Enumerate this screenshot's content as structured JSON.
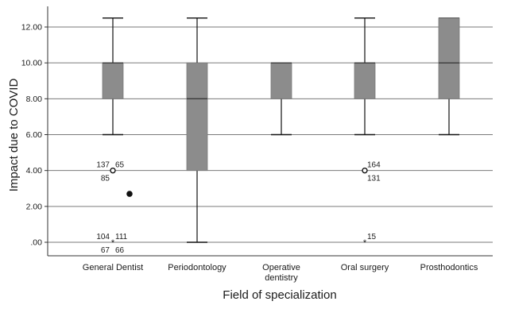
{
  "chart_data": {
    "type": "boxplot",
    "xlabel": "Field of specialization",
    "ylabel": "Impact due to COVID",
    "ylim": [
      -0.9,
      12.8
    ],
    "yticks": [
      ".00",
      "2.00",
      "4.00",
      "6.00",
      "8.00",
      "10.00",
      "12.00"
    ],
    "ytick_values": [
      0,
      2,
      4,
      6,
      8,
      10,
      12
    ],
    "grid": "horizontal",
    "box_color": "#8c8c8c",
    "categories": [
      {
        "label": "General Dentist",
        "lines": [
          "General Dentist"
        ],
        "whisker_low": 6,
        "q1": 8,
        "median": 10,
        "q3": 10,
        "whisker_high": 12.5
      },
      {
        "label": "Periodontology",
        "lines": [
          "Periodontology"
        ],
        "whisker_low": 0,
        "q1": 4,
        "median": 8,
        "q3": 10,
        "whisker_high": 12.5
      },
      {
        "label": "Operative dentistry",
        "lines": [
          "Operative",
          "dentistry"
        ],
        "whisker_low": 6,
        "q1": 8,
        "median": 10,
        "q3": 10,
        "whisker_high": 10
      },
      {
        "label": "Oral surgery",
        "lines": [
          "Oral surgery"
        ],
        "whisker_low": 6,
        "q1": 8,
        "median": 10,
        "q3": 10,
        "whisker_high": 12.5
      },
      {
        "label": "Prosthodontics",
        "lines": [
          "Prosthodontics"
        ],
        "whisker_low": 6,
        "q1": 8,
        "median": 10,
        "q3": 12.5,
        "whisker_high": 12.5
      }
    ],
    "outliers": [
      {
        "category": 0,
        "value": 4,
        "marker": "circle",
        "labels": [
          {
            "text": "137",
            "pos": "top-left"
          },
          {
            "text": "65",
            "pos": "top-right"
          },
          {
            "text": "85",
            "pos": "bottom-left"
          }
        ]
      },
      {
        "category": 0,
        "value": 0,
        "marker": "star",
        "labels": [
          {
            "text": "104",
            "pos": "top-left"
          },
          {
            "text": "111",
            "pos": "top-right"
          },
          {
            "text": "67",
            "pos": "bottom-left"
          },
          {
            "text": "66",
            "pos": "bottom-right"
          }
        ]
      },
      {
        "category": 3,
        "value": 4,
        "marker": "circle",
        "labels": [
          {
            "text": "164",
            "pos": "top-right"
          },
          {
            "text": "131",
            "pos": "bottom-right"
          }
        ]
      },
      {
        "category": 3,
        "value": 0,
        "marker": "star",
        "labels": [
          {
            "text": "15",
            "pos": "top-right"
          }
        ]
      }
    ],
    "extra_marks": [
      {
        "category": 0,
        "value": 2.7,
        "marker": "dot",
        "offset": "right"
      }
    ]
  }
}
